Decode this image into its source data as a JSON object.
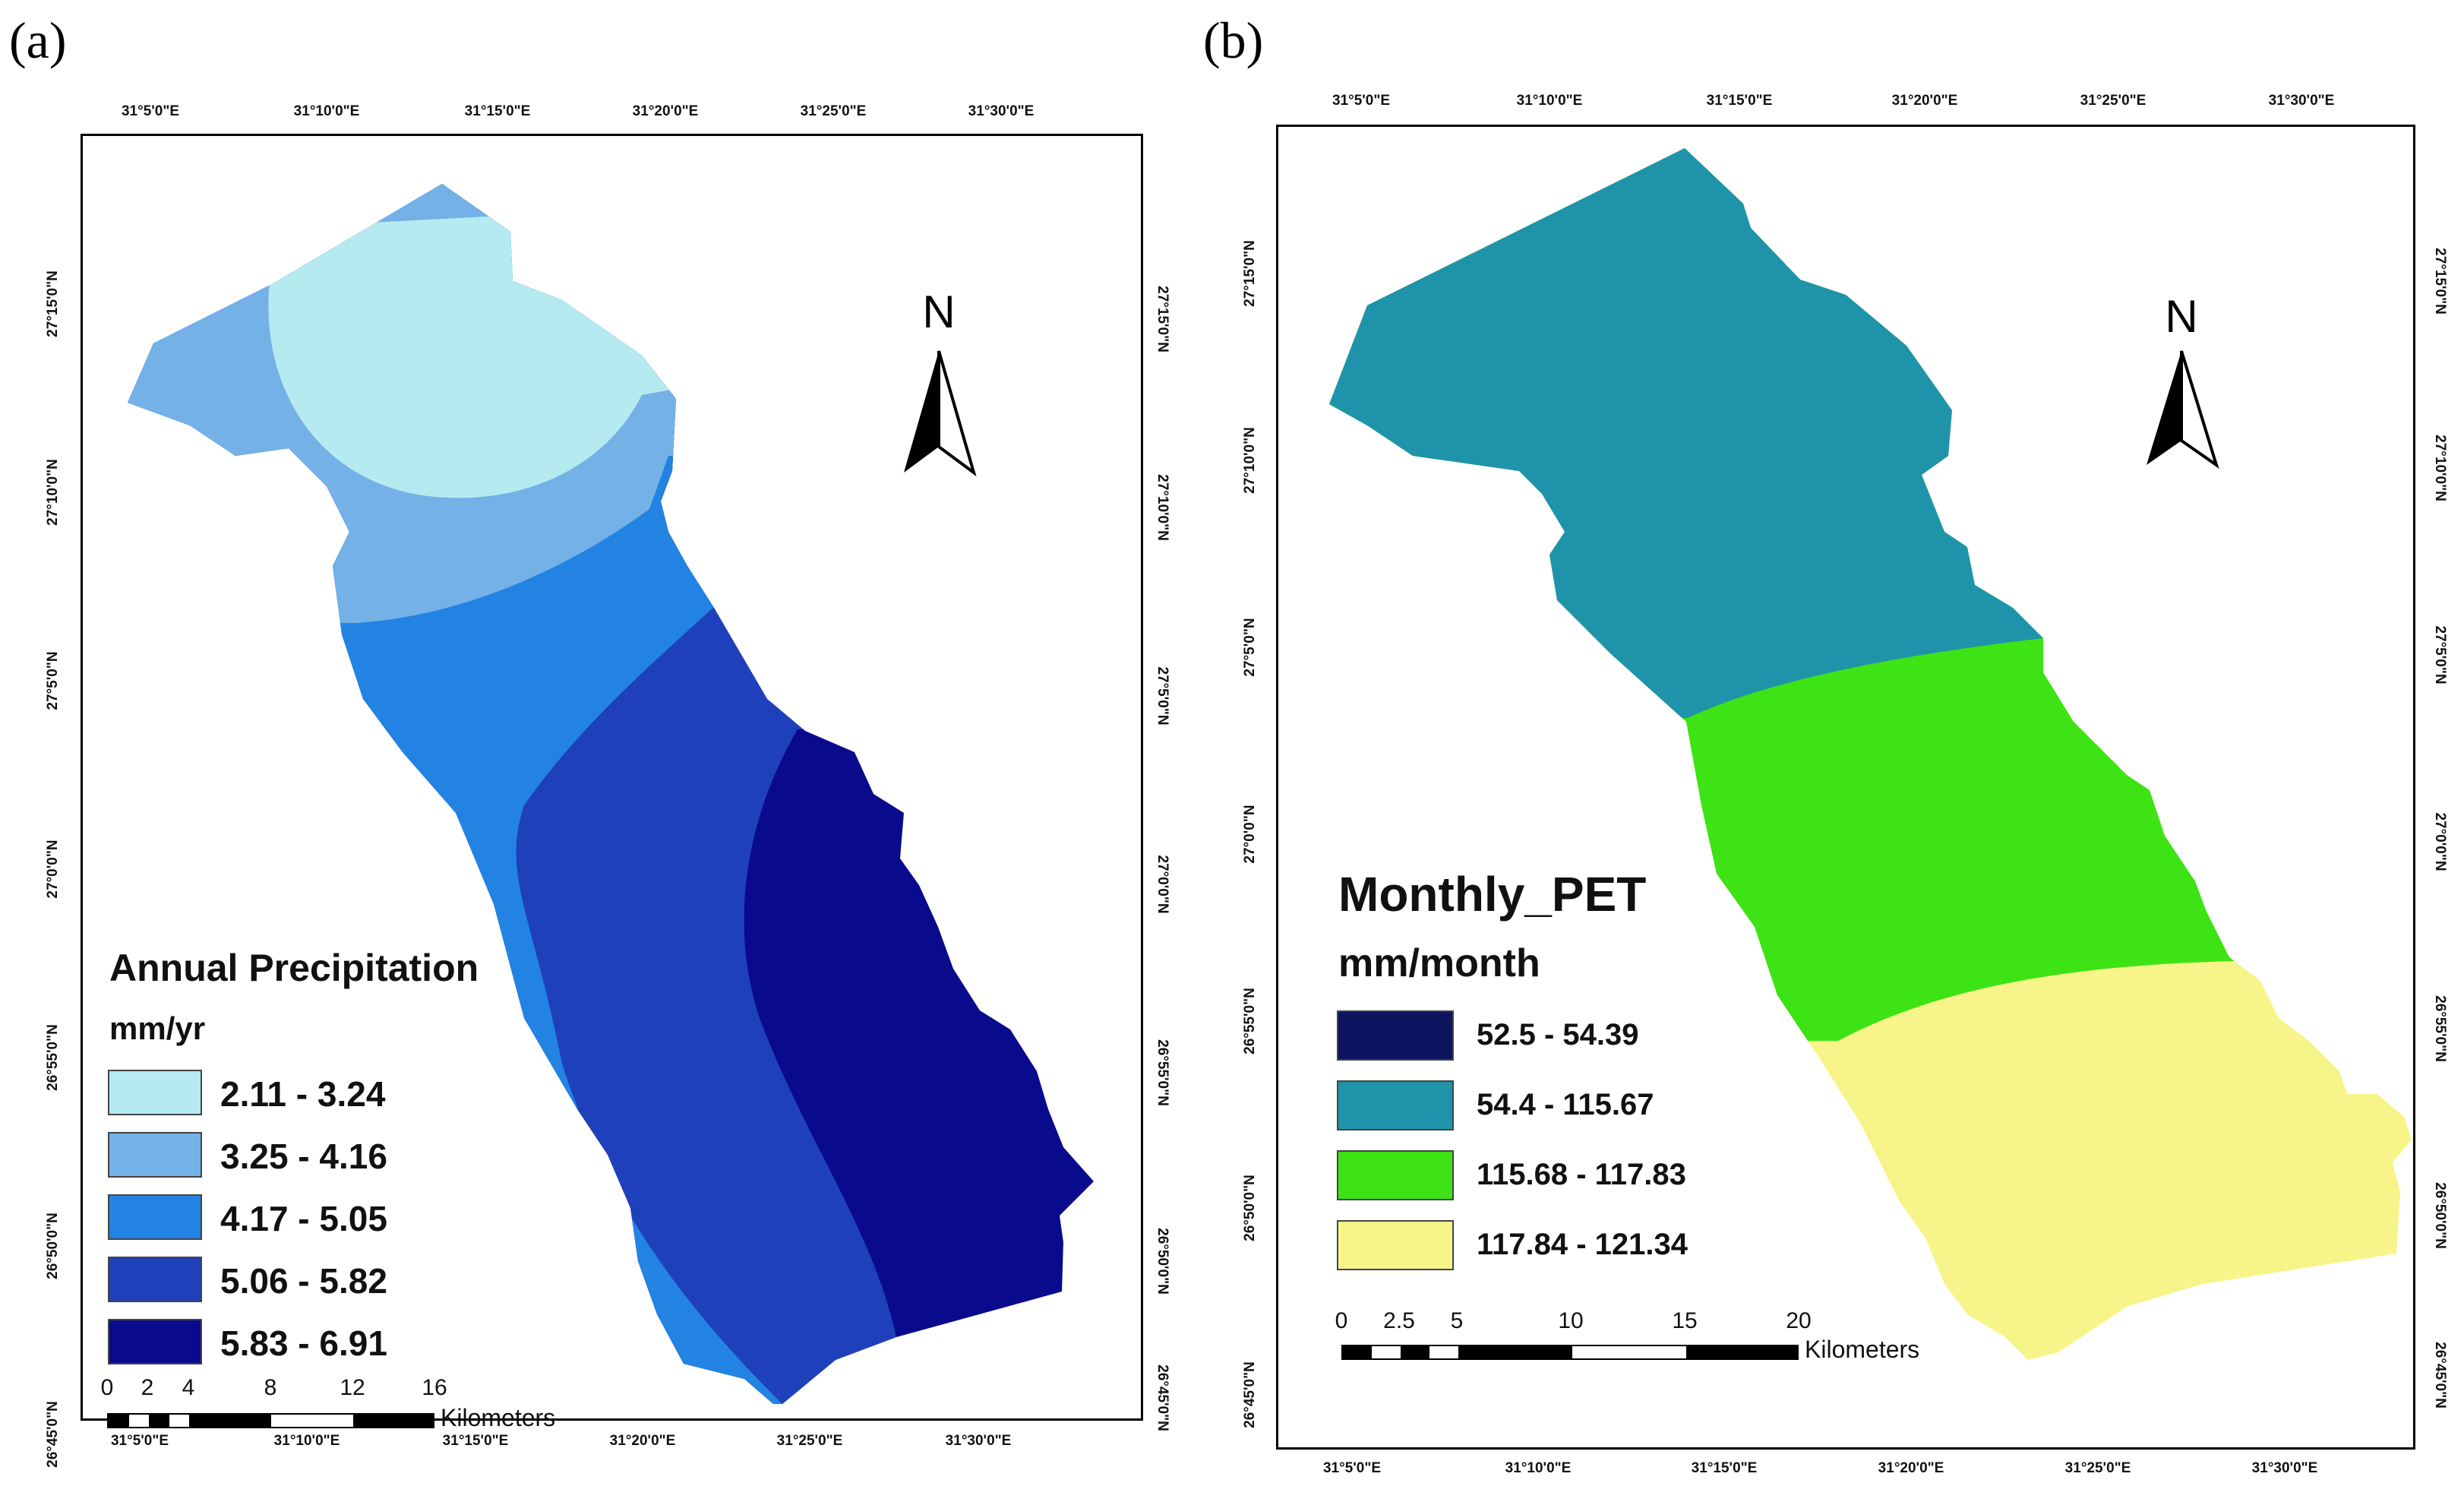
{
  "panels": {
    "a": {
      "label": "(a)",
      "top_ticks": [
        "31°5'0\"E",
        "31°10'0\"E",
        "31°15'0\"E",
        "31°20'0\"E",
        "31°25'0\"E",
        "31°30'0\"E"
      ],
      "bottom_ticks": [
        "31°5'0\"E",
        "31°10'0\"E",
        "31°15'0\"E",
        "31°20'0\"E",
        "31°25'0\"E",
        "31°30'0\"E"
      ],
      "left_ticks": [
        "27°15'0\"N",
        "27°10'0\"N",
        "27°5'0\"N",
        "27°0'0\"N",
        "26°55'0\"N",
        "26°50'0\"N",
        "26°45'0\"N"
      ],
      "right_ticks": [
        "27°15'0\"N",
        "27°10'0\"N",
        "27°5'0\"N",
        "27°0'0\"N",
        "26°55'0\"N",
        "26°50'0\"N",
        "26°45'0\"N"
      ],
      "north": "N",
      "legend_title": "Annual Precipitation",
      "legend_unit": "mm/yr",
      "classes": [
        {
          "range": "2.11 - 3.24",
          "color": "#b5eaf0"
        },
        {
          "range": "3.25 - 4.16",
          "color": "#73b1e6"
        },
        {
          "range": "4.17 - 5.05",
          "color": "#2383e2"
        },
        {
          "range": "5.06 - 5.82",
          "color": "#1e40bb"
        },
        {
          "range": "5.83 - 6.91",
          "color": "#0a0a8c"
        }
      ],
      "scale_numbers": [
        "0",
        "2",
        "4",
        "8",
        "12",
        "16"
      ],
      "scale_unit": "Kilometers"
    },
    "b": {
      "label": "(b)",
      "top_ticks": [
        "31°5'0\"E",
        "31°10'0\"E",
        "31°15'0\"E",
        "31°20'0\"E",
        "31°25'0\"E",
        "31°30'0\"E"
      ],
      "bottom_ticks": [
        "31°5'0\"E",
        "31°10'0\"E",
        "31°15'0\"E",
        "31°20'0\"E",
        "31°25'0\"E",
        "31°30'0\"E"
      ],
      "left_ticks": [
        "27°15'0\"N",
        "27°10'0\"N",
        "27°5'0\"N",
        "27°0'0\"N",
        "26°55'0\"N",
        "26°50'0\"N",
        "26°45'0\"N"
      ],
      "right_ticks": [
        "27°15'0\"N",
        "27°10'0\"N",
        "27°5'0\"N",
        "27°0'0\"N",
        "26°55'0\"N",
        "26°50'0\"N",
        "26°45'0\"N"
      ],
      "north": "N",
      "legend_title": "Monthly_PET",
      "legend_unit": "mm/month",
      "classes": [
        {
          "range": "52.5 - 54.39",
          "color": "#0c1460"
        },
        {
          "range": "54.4 - 115.67",
          "color": "#1f93aa"
        },
        {
          "range": "115.68 - 117.83",
          "color": "#3de314"
        },
        {
          "range": "117.84 - 121.34",
          "color": "#f7f58a"
        }
      ],
      "scale_numbers": [
        "0",
        "2.5",
        "5",
        "10",
        "15",
        "20"
      ],
      "scale_unit": "Kilometers"
    }
  }
}
